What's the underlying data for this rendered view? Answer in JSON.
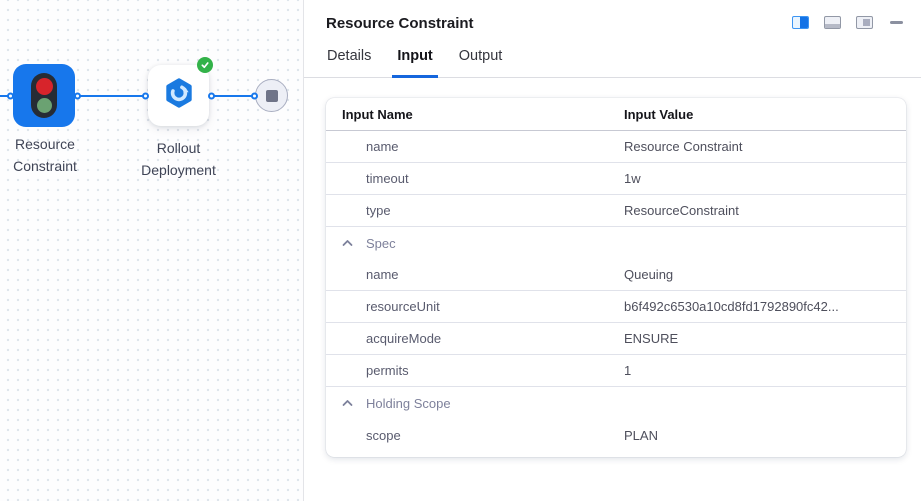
{
  "colors": {
    "accent": "#1777ec",
    "tab-underline": "#1566dd",
    "success": "#33b249",
    "signal-red": "#d7242b",
    "signal-green": "#6ba272"
  },
  "canvas": {
    "nodes": [
      {
        "id": "resource-constraint",
        "label": "Resource Constraint",
        "icon": "traffic-light-icon"
      },
      {
        "id": "rollout-deployment",
        "label": "Rollout Deployment",
        "icon": "rollout-icon",
        "status": "success-check-icon"
      },
      {
        "id": "end",
        "icon": "stop-icon"
      }
    ]
  },
  "panel": {
    "title": "Resource Constraint",
    "controls": [
      "split-view-icon",
      "dock-bottom-icon",
      "dock-floating-icon",
      "minimize-icon"
    ],
    "tabs": [
      {
        "label": "Details",
        "active": false
      },
      {
        "label": "Input",
        "active": true
      },
      {
        "label": "Output",
        "active": false
      }
    ],
    "table": {
      "columns": [
        "Input Name",
        "Input Value"
      ],
      "rows": [
        {
          "label": "name",
          "value": "Resource Constraint",
          "divider": true
        },
        {
          "label": "timeout",
          "value": "1w",
          "divider": true
        },
        {
          "label": "type",
          "value": "ResourceConstraint",
          "divider": true
        },
        {
          "group": true,
          "label": "Spec",
          "expanded": true,
          "divider": false
        },
        {
          "label": "name",
          "value": "Queuing",
          "divider": true
        },
        {
          "label": "resourceUnit",
          "value": "b6f492c6530a10cd8fd1792890fc42...",
          "divider": true
        },
        {
          "label": "acquireMode",
          "value": "ENSURE",
          "divider": true
        },
        {
          "label": "permits",
          "value": "1",
          "divider": true
        },
        {
          "group": true,
          "label": "Holding Scope",
          "expanded": true,
          "divider": false
        },
        {
          "label": "scope",
          "value": "PLAN",
          "divider": false
        }
      ]
    }
  }
}
